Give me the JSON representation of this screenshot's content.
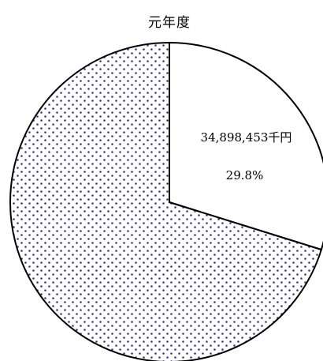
{
  "chart_data": {
    "type": "pie",
    "title": "元年度",
    "slices": [
      {
        "value_label": "34,898,453千円",
        "percent_label": "29.8%",
        "percent": 29.8,
        "fill": "#ffffff"
      },
      {
        "value_label": "",
        "percent_label": "",
        "percent": 70.2,
        "fill": "dots"
      }
    ],
    "colors": {
      "dot": "#3a3a8c",
      "outline": "#000000"
    }
  }
}
